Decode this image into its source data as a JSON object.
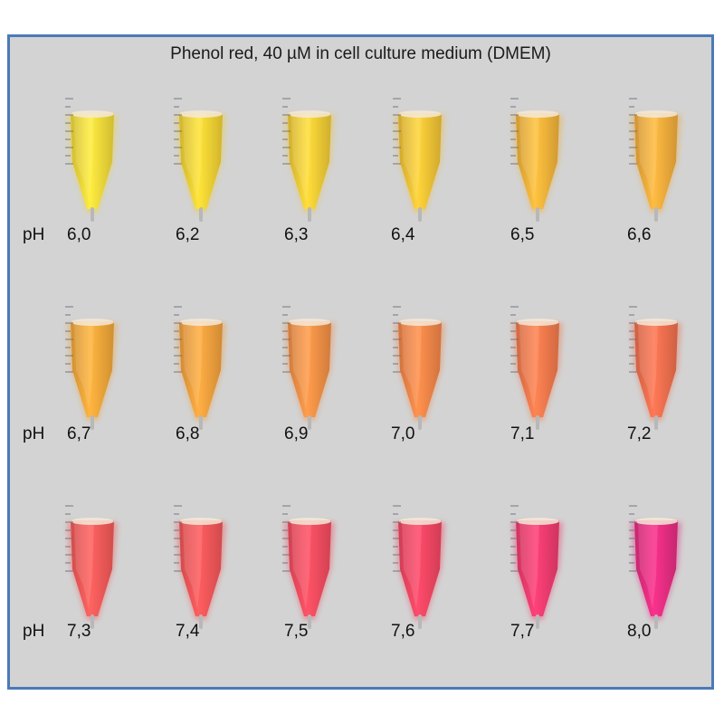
{
  "title": "Phenol red, 40 µM in cell culture medium (DMEM)",
  "ph_prefix": "pH",
  "rows": [
    [
      {
        "ph": "6,0",
        "color": "#ecd438"
      },
      {
        "ph": "6,2",
        "color": "#eccc32"
      },
      {
        "ph": "6,3",
        "color": "#ecc634"
      },
      {
        "ph": "6,4",
        "color": "#ecbe34"
      },
      {
        "ph": "6,5",
        "color": "#ecae38"
      },
      {
        "ph": "6,6",
        "color": "#eca83a"
      }
    ],
    [
      {
        "ph": "6,7",
        "color": "#eca238"
      },
      {
        "ph": "6,8",
        "color": "#ec9c3c"
      },
      {
        "ph": "6,9",
        "color": "#ec8c44"
      },
      {
        "ph": "7,0",
        "color": "#ec8246"
      },
      {
        "ph": "7,1",
        "color": "#ec764a"
      },
      {
        "ph": "7,2",
        "color": "#ea6c4c"
      }
    ],
    [
      {
        "ph": "7,3",
        "color": "#ee5856"
      },
      {
        "ph": "7,4",
        "color": "#ee5456"
      },
      {
        "ph": "7,5",
        "color": "#ee4a5c"
      },
      {
        "ph": "7,6",
        "color": "#ee4460"
      },
      {
        "ph": "7,7",
        "color": "#ea3a6c"
      },
      {
        "ph": "8,0",
        "color": "#e02c7e"
      }
    ]
  ]
}
